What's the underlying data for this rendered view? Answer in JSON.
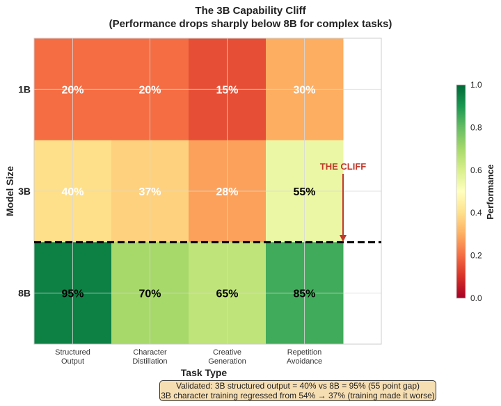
{
  "chart_data": {
    "type": "heatmap",
    "title": "The 3B Capability Cliff",
    "subtitle": "(Performance drops sharply below 8B for complex tasks)",
    "xlabel": "Task Type",
    "ylabel": "Model Size",
    "x_categories": [
      "Structured\nOutput",
      "Character\nDistillation",
      "Creative\nGeneration",
      "Repetition\nAvoidance"
    ],
    "y_categories": [
      "1B",
      "3B",
      "8B"
    ],
    "values": [
      [
        0.2,
        0.2,
        0.15,
        0.3
      ],
      [
        0.4,
        0.37,
        0.28,
        0.55
      ],
      [
        0.95,
        0.7,
        0.65,
        0.85
      ]
    ],
    "cell_labels": [
      [
        "20%",
        "20%",
        "15%",
        "30%"
      ],
      [
        "40%",
        "37%",
        "28%",
        "55%"
      ],
      [
        "95%",
        "70%",
        "65%",
        "85%"
      ]
    ],
    "colormap": "RdYlGn",
    "vmin": 0.0,
    "vmax": 1.0,
    "grid": true,
    "colorbar": {
      "label": "Performance",
      "ticks": [
        "0.0",
        "0.2",
        "0.4",
        "0.6",
        "0.8",
        "1.0"
      ],
      "placement": "right"
    },
    "annotations": {
      "cliff_label": "THE CLIFF",
      "cliff_line_between": [
        "3B",
        "8B"
      ],
      "cliff_color": "#c0392b"
    },
    "note": {
      "line1": "Validated: 3B structured output = 40% vs 8B = 95% (55 point gap)",
      "line2": "3B character training regressed from 54% → 37% (training made it worse)"
    }
  }
}
